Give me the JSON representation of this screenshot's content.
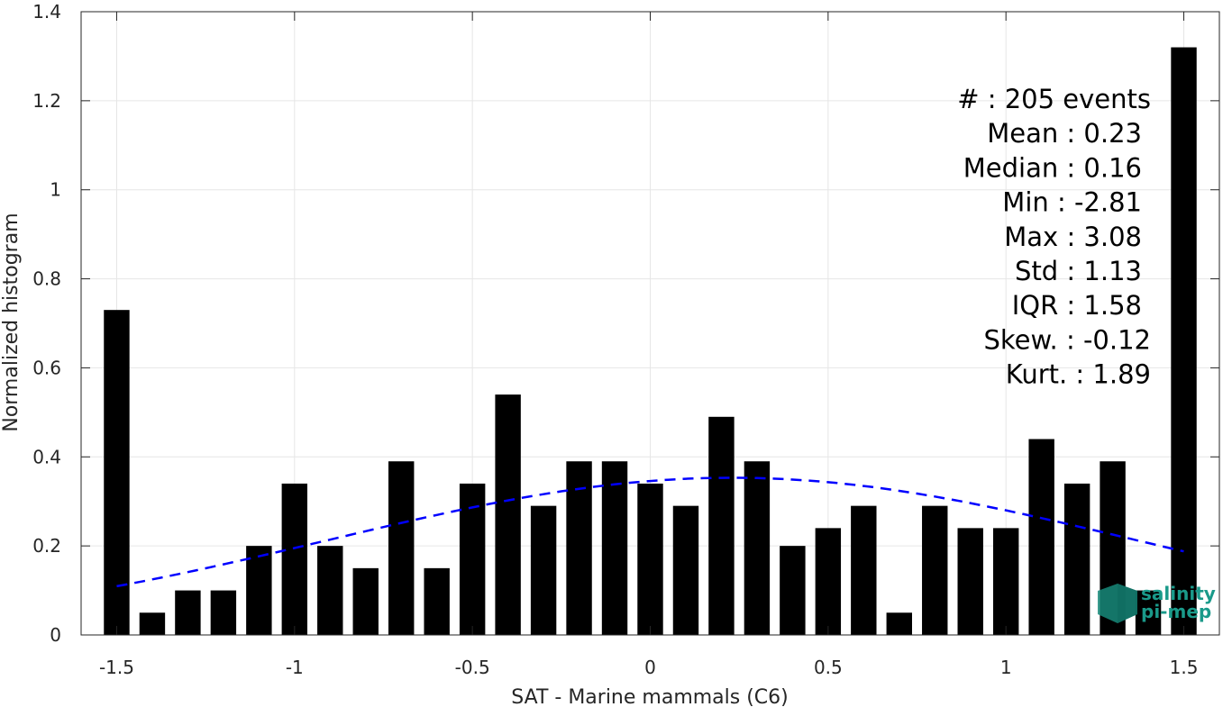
{
  "chart_data": {
    "type": "bar",
    "xlabel": "SAT - Marine mammals (C6)",
    "ylabel": "Normalized histogram",
    "xlim": [
      -1.6,
      1.6
    ],
    "ylim": [
      0,
      1.4
    ],
    "xticks": [
      "-1.5",
      "-1",
      "-0.5",
      "0",
      "0.5",
      "1",
      "1.5"
    ],
    "yticks": [
      "0",
      "0.2",
      "0.4",
      "0.6",
      "0.8",
      "1",
      "1.2",
      "1.4"
    ],
    "grid": true,
    "x": [
      -1.5,
      -1.4,
      -1.3,
      -1.2,
      -1.1,
      -1.0,
      -0.9,
      -0.8,
      -0.7,
      -0.6,
      -0.5,
      -0.4,
      -0.3,
      -0.2,
      -0.1,
      0.0,
      0.1,
      0.2,
      0.3,
      0.4,
      0.5,
      0.6,
      0.7,
      0.8,
      0.9,
      1.0,
      1.1,
      1.2,
      1.3,
      1.4,
      1.5
    ],
    "values": [
      0.73,
      0.05,
      0.1,
      0.1,
      0.2,
      0.34,
      0.2,
      0.15,
      0.39,
      0.15,
      0.34,
      0.54,
      0.29,
      0.39,
      0.39,
      0.34,
      0.29,
      0.49,
      0.39,
      0.2,
      0.24,
      0.29,
      0.05,
      0.29,
      0.24,
      0.24,
      0.44,
      0.34,
      0.39,
      0.1,
      1.32
    ],
    "fit_curve": {
      "mean": 0.23,
      "std": 1.13,
      "color": "#0000ff",
      "style": "dashed",
      "x_range": [
        -1.5,
        1.5
      ]
    },
    "bar_color": "#000000",
    "stats": [
      "#  : 205 events",
      "Mean : 0.23",
      "Median : 0.16",
      "Min : -2.81",
      "Max : 3.08",
      "Std : 1.13",
      "IQR : 1.58",
      "Skew. : -0.12",
      "Kurt. : 1.89"
    ]
  },
  "logo": {
    "line1": "salinity",
    "line2": "pi-mep"
  }
}
